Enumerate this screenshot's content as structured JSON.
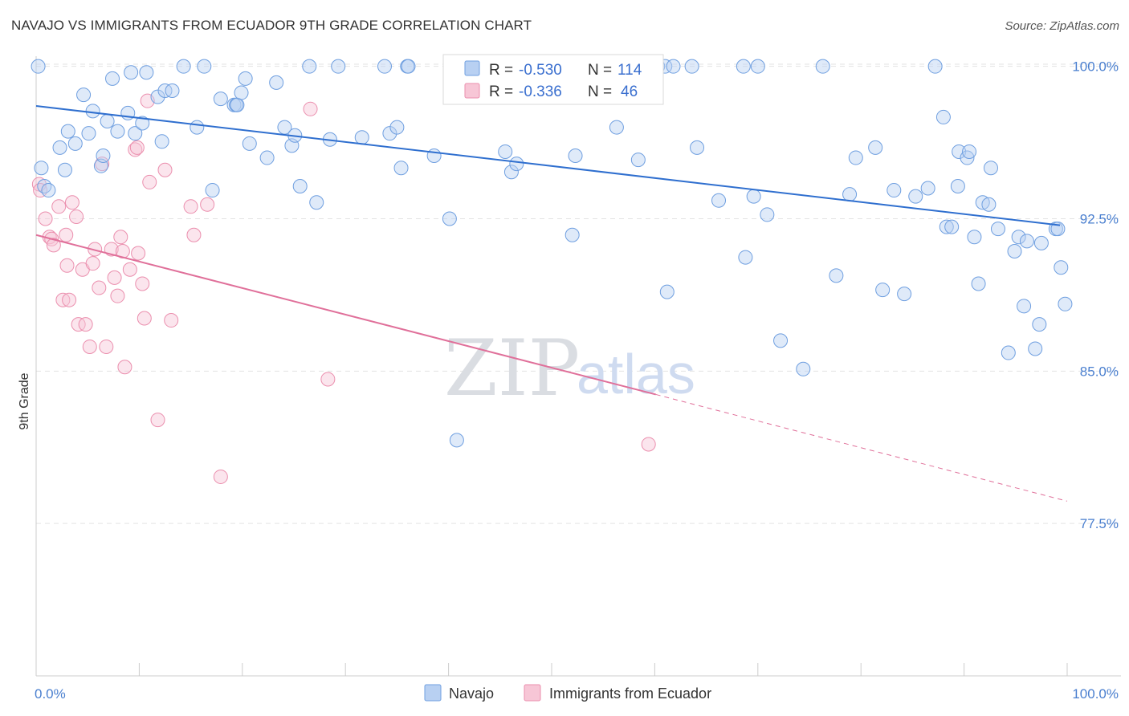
{
  "title": "NAVAJO VS IMMIGRANTS FROM ECUADOR 9TH GRADE CORRELATION CHART",
  "source": "Source: ZipAtlas.com",
  "watermark": {
    "part1": "ZIP",
    "part2": "atlas"
  },
  "chart_data": {
    "type": "scatter",
    "title": "NAVAJO VS IMMIGRANTS FROM ECUADOR 9TH GRADE CORRELATION CHART",
    "xlabel": "",
    "ylabel": "9th Grade",
    "xlim": [
      0,
      100
    ],
    "ylim": [
      70.0,
      100.5
    ],
    "x_tick_labels": [
      "0.0%",
      "100.0%"
    ],
    "y_ticks": [
      100.0,
      92.5,
      85.0,
      77.5
    ],
    "y_tick_labels": [
      "100.0%",
      "92.5%",
      "85.0%",
      "77.5%"
    ],
    "grid": true,
    "legend_position": "bottom",
    "colors": {
      "navajo": "#6f9fe0",
      "ecuador": "#eb8fae",
      "navajo_line": "#2f6fcf",
      "ecuador_line": "#e0709a"
    },
    "stats": [
      {
        "r_label": "R =",
        "r": "-0.530",
        "n_label": "N =",
        "n": "114"
      },
      {
        "r_label": "R =",
        "r": "-0.336",
        "n_label": "N =",
        "n": "46"
      }
    ],
    "series": [
      {
        "name": "Navajo",
        "trend": {
          "x": [
            0,
            99.3
          ],
          "y": [
            98.05,
            92.18
          ]
        },
        "points": [
          [
            0.5,
            95.0
          ],
          [
            0.8,
            94.1
          ],
          [
            1.2,
            93.9
          ],
          [
            2.3,
            96.0
          ],
          [
            2.8,
            94.9
          ],
          [
            3.1,
            96.8
          ],
          [
            3.8,
            96.2
          ],
          [
            4.6,
            98.6
          ],
          [
            5.1,
            96.7
          ],
          [
            5.5,
            97.8
          ],
          [
            6.3,
            95.1
          ],
          [
            6.5,
            95.6
          ],
          [
            6.9,
            97.3
          ],
          [
            7.4,
            99.4
          ],
          [
            7.9,
            96.8
          ],
          [
            8.9,
            97.7
          ],
          [
            9.2,
            99.7
          ],
          [
            9.6,
            96.7
          ],
          [
            10.3,
            97.2
          ],
          [
            10.7,
            99.7
          ],
          [
            11.8,
            98.5
          ],
          [
            12.2,
            96.3
          ],
          [
            12.5,
            98.8
          ],
          [
            13.2,
            98.8
          ],
          [
            14.3,
            100.0
          ],
          [
            15.6,
            97.0
          ],
          [
            16.3,
            100.0
          ],
          [
            17.1,
            93.9
          ],
          [
            17.9,
            98.4
          ],
          [
            19.2,
            98.1
          ],
          [
            19.4,
            98.1
          ],
          [
            19.5,
            98.1
          ],
          [
            19.9,
            98.7
          ],
          [
            20.3,
            99.4
          ],
          [
            20.7,
            96.2
          ],
          [
            22.4,
            95.5
          ],
          [
            23.3,
            99.2
          ],
          [
            24.1,
            97.0
          ],
          [
            24.8,
            96.1
          ],
          [
            25.1,
            96.6
          ],
          [
            25.6,
            94.1
          ],
          [
            26.5,
            100.0
          ],
          [
            27.2,
            93.3
          ],
          [
            28.5,
            96.4
          ],
          [
            29.3,
            100.0
          ],
          [
            31.6,
            96.5
          ],
          [
            33.8,
            100.0
          ],
          [
            34.3,
            96.7
          ],
          [
            35.0,
            97.0
          ],
          [
            35.4,
            95.0
          ],
          [
            36.0,
            100.0
          ],
          [
            36.1,
            100.0
          ],
          [
            38.6,
            95.6
          ],
          [
            40.1,
            92.5
          ],
          [
            40.8,
            81.6
          ],
          [
            44.4,
            100.0
          ],
          [
            45.5,
            95.8
          ],
          [
            46.1,
            94.8
          ],
          [
            46.6,
            95.2
          ],
          [
            52.0,
            91.7
          ],
          [
            52.3,
            95.6
          ],
          [
            56.3,
            97.0
          ],
          [
            58.4,
            95.4
          ],
          [
            60.3,
            100.0
          ],
          [
            61.0,
            100.0
          ],
          [
            61.2,
            88.9
          ],
          [
            61.8,
            100.0
          ],
          [
            63.6,
            100.0
          ],
          [
            64.1,
            96.0
          ],
          [
            66.2,
            93.4
          ],
          [
            68.6,
            100.0
          ],
          [
            68.8,
            90.6
          ],
          [
            69.6,
            93.6
          ],
          [
            70.0,
            100.0
          ],
          [
            70.9,
            92.7
          ],
          [
            72.2,
            86.5
          ],
          [
            74.4,
            85.1
          ],
          [
            76.3,
            100.0
          ],
          [
            77.6,
            89.7
          ],
          [
            78.9,
            93.7
          ],
          [
            79.5,
            95.5
          ],
          [
            81.4,
            96.0
          ],
          [
            82.1,
            89.0
          ],
          [
            83.2,
            93.9
          ],
          [
            84.2,
            88.8
          ],
          [
            85.3,
            93.6
          ],
          [
            86.5,
            94.0
          ],
          [
            87.2,
            100.0
          ],
          [
            88.0,
            97.5
          ],
          [
            88.3,
            92.1
          ],
          [
            88.8,
            92.1
          ],
          [
            89.4,
            94.1
          ],
          [
            89.5,
            95.8
          ],
          [
            90.3,
            95.5
          ],
          [
            90.5,
            95.8
          ],
          [
            91.0,
            91.6
          ],
          [
            91.4,
            89.3
          ],
          [
            91.8,
            93.3
          ],
          [
            92.4,
            93.2
          ],
          [
            92.6,
            95.0
          ],
          [
            93.3,
            92.0
          ],
          [
            94.3,
            85.9
          ],
          [
            94.9,
            90.9
          ],
          [
            95.3,
            91.6
          ],
          [
            95.8,
            88.2
          ],
          [
            96.1,
            91.4
          ],
          [
            96.9,
            86.1
          ],
          [
            97.3,
            87.3
          ],
          [
            97.5,
            91.3
          ],
          [
            98.9,
            92.0
          ],
          [
            99.1,
            92.0
          ],
          [
            99.4,
            90.1
          ],
          [
            99.8,
            88.3
          ],
          [
            0.2,
            100.0
          ]
        ]
      },
      {
        "name": "Immigrants from Ecuador",
        "trend": {
          "x": [
            0,
            60.1
          ],
          "y": [
            91.7,
            83.85
          ]
        },
        "trend_dashed": {
          "x": [
            60.1,
            100
          ],
          "y": [
            83.85,
            78.6
          ]
        },
        "points": [
          [
            0.3,
            94.2
          ],
          [
            0.4,
            93.9
          ],
          [
            0.9,
            92.5
          ],
          [
            1.3,
            91.6
          ],
          [
            1.5,
            91.5
          ],
          [
            1.7,
            91.2
          ],
          [
            2.2,
            93.1
          ],
          [
            2.6,
            88.5
          ],
          [
            2.9,
            91.7
          ],
          [
            3.0,
            90.2
          ],
          [
            3.2,
            88.5
          ],
          [
            3.5,
            93.3
          ],
          [
            3.9,
            92.6
          ],
          [
            4.1,
            87.3
          ],
          [
            4.5,
            90.0
          ],
          [
            4.8,
            87.3
          ],
          [
            5.2,
            86.2
          ],
          [
            5.5,
            90.3
          ],
          [
            5.7,
            91.0
          ],
          [
            6.1,
            89.1
          ],
          [
            6.4,
            95.2
          ],
          [
            6.8,
            86.2
          ],
          [
            7.3,
            91.0
          ],
          [
            7.6,
            89.6
          ],
          [
            7.9,
            88.7
          ],
          [
            8.2,
            91.6
          ],
          [
            8.4,
            90.9
          ],
          [
            8.6,
            85.2
          ],
          [
            9.1,
            90.0
          ],
          [
            9.6,
            95.9
          ],
          [
            9.9,
            90.8
          ],
          [
            10.3,
            89.3
          ],
          [
            10.5,
            87.6
          ],
          [
            10.8,
            98.3
          ],
          [
            11.0,
            94.3
          ],
          [
            11.8,
            82.6
          ],
          [
            12.5,
            94.9
          ],
          [
            13.1,
            87.5
          ],
          [
            15.0,
            93.1
          ],
          [
            15.3,
            91.7
          ],
          [
            16.6,
            93.2
          ],
          [
            17.9,
            79.8
          ],
          [
            26.6,
            97.9
          ],
          [
            28.3,
            84.6
          ],
          [
            59.4,
            81.4
          ],
          [
            9.8,
            96.0
          ]
        ]
      }
    ]
  }
}
